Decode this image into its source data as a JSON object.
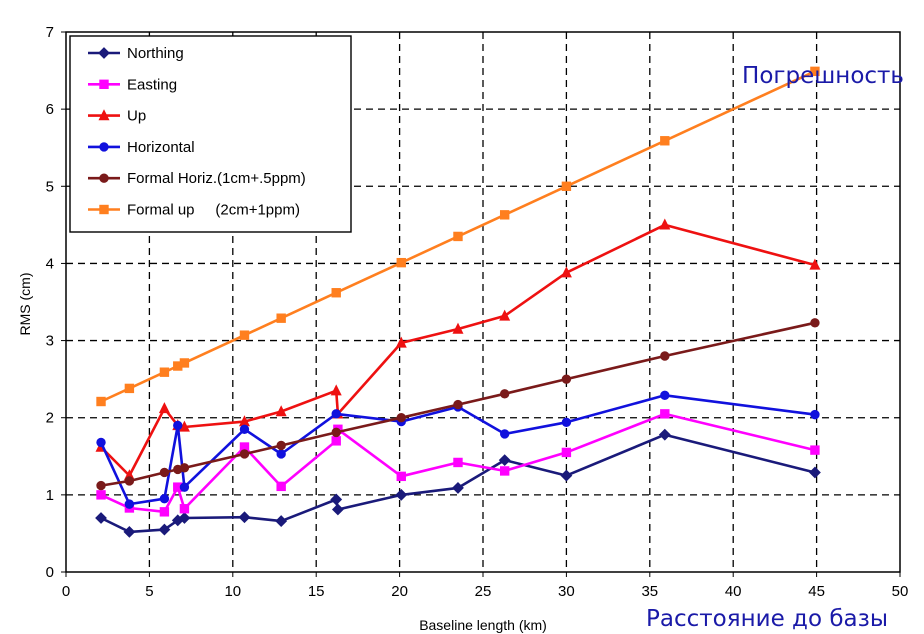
{
  "chart_data": {
    "type": "line",
    "xlabel": "Baseline length (km)",
    "ylabel": "RMS (cm)",
    "xlim": [
      0,
      50
    ],
    "ylim": [
      0,
      7
    ],
    "xticks": [
      "0",
      "5",
      "10",
      "15",
      "20",
      "25",
      "30",
      "35",
      "40",
      "45",
      "50"
    ],
    "yticks": [
      "0",
      "1",
      "2",
      "3",
      "4",
      "5",
      "6",
      "7"
    ],
    "grid": true,
    "legend_position": "top-left",
    "annotations": {
      "top_right": "Погрешность",
      "bottom_right": "Расстояние до базы"
    },
    "series": [
      {
        "name": "Northing",
        "color": "#1a1a7a",
        "marker": "diamond",
        "points": [
          [
            2.1,
            0.7
          ],
          [
            3.8,
            0.52
          ],
          [
            5.9,
            0.55
          ],
          [
            6.7,
            0.67
          ],
          [
            7.1,
            0.7
          ],
          [
            10.7,
            0.71
          ],
          [
            12.9,
            0.66
          ],
          [
            16.2,
            0.94
          ],
          [
            16.3,
            0.81
          ],
          [
            20.1,
            1.0
          ],
          [
            23.5,
            1.09
          ],
          [
            26.3,
            1.45
          ],
          [
            30.0,
            1.25
          ],
          [
            35.9,
            1.78
          ],
          [
            44.9,
            1.29
          ]
        ]
      },
      {
        "name": "Easting",
        "color": "#ff00ff",
        "marker": "square",
        "points": [
          [
            2.1,
            1.0
          ],
          [
            3.8,
            0.83
          ],
          [
            5.9,
            0.78
          ],
          [
            6.7,
            1.1
          ],
          [
            7.1,
            0.82
          ],
          [
            10.7,
            1.62
          ],
          [
            12.9,
            1.11
          ],
          [
            16.2,
            1.7
          ],
          [
            16.3,
            1.85
          ],
          [
            20.1,
            1.24
          ],
          [
            23.5,
            1.42
          ],
          [
            26.3,
            1.31
          ],
          [
            30.0,
            1.55
          ],
          [
            35.9,
            2.05
          ],
          [
            44.9,
            1.58
          ]
        ]
      },
      {
        "name": "Up",
        "color": "#ee1111",
        "marker": "triangle",
        "points": [
          [
            2.1,
            1.62
          ],
          [
            3.8,
            1.25
          ],
          [
            5.9,
            2.12
          ],
          [
            6.7,
            1.9
          ],
          [
            7.1,
            1.88
          ],
          [
            10.7,
            1.95
          ],
          [
            12.9,
            2.08
          ],
          [
            16.2,
            2.35
          ],
          [
            16.3,
            2.05
          ],
          [
            20.1,
            2.97
          ],
          [
            23.5,
            3.15
          ],
          [
            26.3,
            3.32
          ],
          [
            30.0,
            3.88
          ],
          [
            35.9,
            4.5
          ],
          [
            44.9,
            3.98
          ]
        ]
      },
      {
        "name": "Horizontal",
        "color": "#1111dd",
        "marker": "circle",
        "points": [
          [
            2.1,
            1.68
          ],
          [
            3.8,
            0.88
          ],
          [
            5.9,
            0.95
          ],
          [
            6.7,
            1.9
          ],
          [
            7.1,
            1.1
          ],
          [
            10.7,
            1.85
          ],
          [
            12.9,
            1.53
          ],
          [
            16.2,
            2.05
          ],
          [
            20.1,
            1.95
          ],
          [
            23.5,
            2.14
          ],
          [
            26.3,
            1.79
          ],
          [
            30.0,
            1.94
          ],
          [
            35.9,
            2.29
          ],
          [
            44.9,
            2.04
          ]
        ]
      },
      {
        "name": "Formal Horiz.(1cm+.5ppm)",
        "color": "#7a1a1a",
        "marker": "circle",
        "points": [
          [
            2.1,
            1.12
          ],
          [
            3.8,
            1.18
          ],
          [
            5.9,
            1.29
          ],
          [
            6.7,
            1.33
          ],
          [
            7.1,
            1.35
          ],
          [
            10.7,
            1.53
          ],
          [
            12.9,
            1.64
          ],
          [
            16.2,
            1.81
          ],
          [
            20.1,
            2.0
          ],
          [
            23.5,
            2.17
          ],
          [
            26.3,
            2.31
          ],
          [
            30.0,
            2.5
          ],
          [
            35.9,
            2.8
          ],
          [
            44.9,
            3.23
          ]
        ]
      },
      {
        "name": "Formal up     (2cm+1ppm)",
        "color": "#ff7f1f",
        "marker": "square",
        "points": [
          [
            2.1,
            2.21
          ],
          [
            3.8,
            2.38
          ],
          [
            5.9,
            2.59
          ],
          [
            6.7,
            2.67
          ],
          [
            7.1,
            2.71
          ],
          [
            10.7,
            3.07
          ],
          [
            12.9,
            3.29
          ],
          [
            16.2,
            3.62
          ],
          [
            20.1,
            4.01
          ],
          [
            23.5,
            4.35
          ],
          [
            26.3,
            4.63
          ],
          [
            30.0,
            5.0
          ],
          [
            35.9,
            5.59
          ],
          [
            44.9,
            6.49
          ]
        ]
      }
    ]
  }
}
